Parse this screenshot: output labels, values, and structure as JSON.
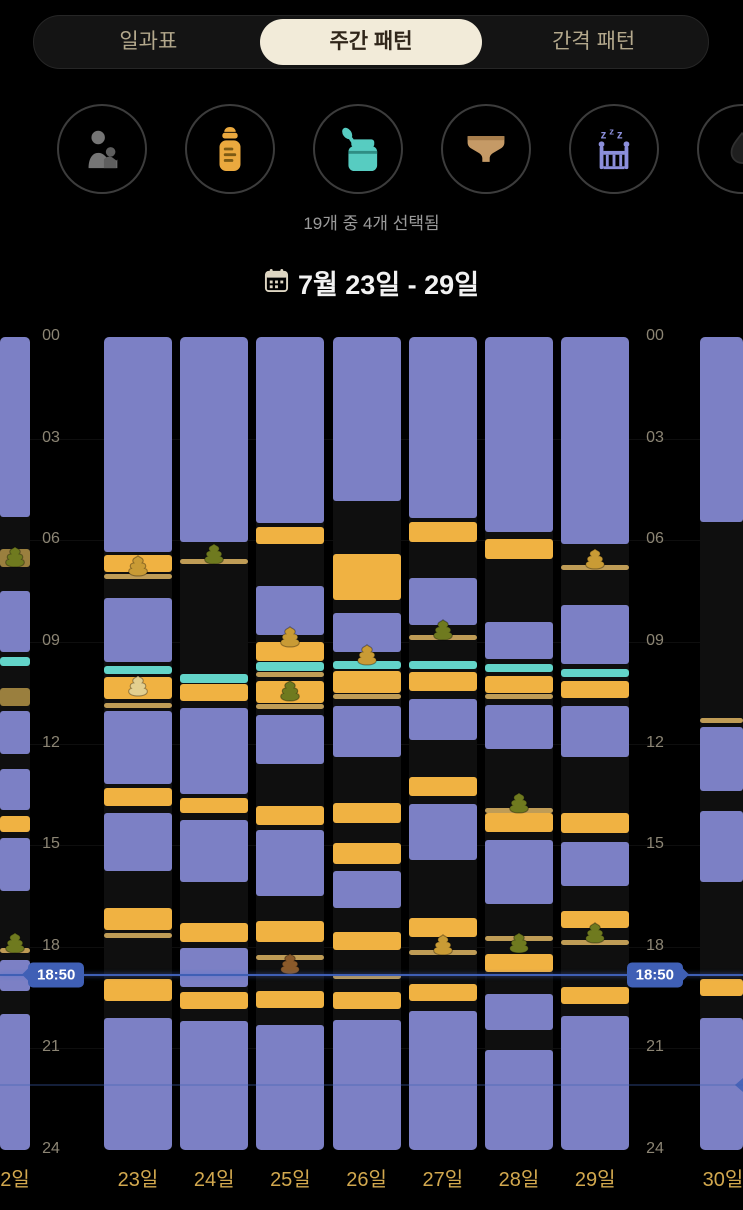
{
  "tabs": {
    "items": [
      {
        "label": "일과표",
        "selected": false
      },
      {
        "label": "주간 패턴",
        "selected": true
      },
      {
        "label": "간격 패턴",
        "selected": false
      }
    ]
  },
  "filters": {
    "summary": "19개 중 4개 선택됨",
    "items": [
      {
        "name": "nursing",
        "selected": false,
        "color": "#757575"
      },
      {
        "name": "bottle",
        "selected": true,
        "color": "#eba93e"
      },
      {
        "name": "baby-food",
        "selected": true,
        "color": "#57ccc1"
      },
      {
        "name": "diaper",
        "selected": true,
        "color": "#c59a66"
      },
      {
        "name": "sleep",
        "selected": true,
        "color": "#8c8fdb"
      },
      {
        "name": "extra",
        "selected": false,
        "color": "#1f1f1f"
      }
    ]
  },
  "date_header": {
    "label": "7월 23일 - 29일"
  },
  "colors": {
    "accent_gold": "#d2a84e",
    "now_line_blue": "#3f5fb5",
    "selected_tab_bg": "#f2ebd9"
  },
  "chart_data": {
    "type": "timeline-week",
    "title": "주간 패턴 (weekly baby activity timeline)",
    "y_ticks": [
      "00",
      "03",
      "06",
      "09",
      "12",
      "15",
      "18",
      "21",
      "24"
    ],
    "hour_range": [
      0,
      24
    ],
    "now_line": {
      "label": "18:50",
      "hour": 18.833,
      "color": "#3f5fb5"
    },
    "secondary_line": {
      "hour": 22.05
    },
    "event_colors": {
      "sleep": "#7c80c5",
      "bottle": "#f0b242",
      "food": "#63d4c9",
      "diaper": "#bf9c56",
      "diaper_block": "#9a7f3e",
      "poop_tan": "#c99b35",
      "poop_olive": "#6f7a1f",
      "poop_brown": "#8a5a2a",
      "poop_cream": "#e3cf8f"
    },
    "left_partial": {
      "label": "2일",
      "events": [
        {
          "t": "sleep",
          "s": 0,
          "e": 5.3
        },
        {
          "t": "diaper_block",
          "s": 6.25,
          "e": 6.8
        },
        {
          "t": "poop",
          "at": 6.5,
          "c": "olive"
        },
        {
          "t": "sleep",
          "s": 7.5,
          "e": 9.3
        },
        {
          "t": "food",
          "s": 9.45,
          "e": 9.7
        },
        {
          "t": "diaper_block",
          "s": 10.35,
          "e": 10.9
        },
        {
          "t": "sleep",
          "s": 11.05,
          "e": 12.3
        },
        {
          "t": "sleep",
          "s": 12.75,
          "e": 13.95
        },
        {
          "t": "bottle",
          "s": 14.15,
          "e": 14.6
        },
        {
          "t": "sleep",
          "s": 14.8,
          "e": 16.35
        },
        {
          "t": "poop",
          "at": 17.9,
          "c": "olive"
        },
        {
          "t": "diaper",
          "at": 18.1
        },
        {
          "t": "sleep",
          "s": 18.4,
          "e": 19.3
        },
        {
          "t": "sleep",
          "s": 20.0,
          "e": 24
        }
      ]
    },
    "right_partial": {
      "label": "30일",
      "events": [
        {
          "t": "sleep",
          "s": 0,
          "e": 5.45
        },
        {
          "t": "diaper",
          "at": 11.3
        },
        {
          "t": "sleep",
          "s": 11.5,
          "e": 13.4
        },
        {
          "t": "sleep",
          "s": 14.0,
          "e": 16.1
        },
        {
          "t": "bottle",
          "s": 18.95,
          "e": 19.45
        },
        {
          "t": "sleep",
          "s": 20.1,
          "e": 24
        }
      ]
    },
    "days": [
      {
        "label": "23일",
        "events": [
          {
            "t": "sleep",
            "s": 0,
            "e": 6.35
          },
          {
            "t": "bottle",
            "s": 6.45,
            "e": 6.95
          },
          {
            "t": "poop",
            "at": 6.75,
            "c": "tan"
          },
          {
            "t": "diaper",
            "at": 7.05
          },
          {
            "t": "sleep",
            "s": 7.7,
            "e": 9.6
          },
          {
            "t": "food",
            "s": 9.7,
            "e": 9.95
          },
          {
            "t": "bottle",
            "s": 10.05,
            "e": 10.7
          },
          {
            "t": "poop",
            "at": 10.3,
            "c": "cream"
          },
          {
            "t": "diaper",
            "at": 10.85
          },
          {
            "t": "sleep",
            "s": 11.05,
            "e": 13.2
          },
          {
            "t": "bottle",
            "s": 13.3,
            "e": 13.85
          },
          {
            "t": "sleep",
            "s": 14.05,
            "e": 15.75
          },
          {
            "t": "bottle",
            "s": 16.85,
            "e": 17.5
          },
          {
            "t": "diaper",
            "at": 17.65
          },
          {
            "t": "bottle",
            "s": 18.95,
            "e": 19.6
          },
          {
            "t": "sleep",
            "s": 20.1,
            "e": 24
          }
        ]
      },
      {
        "label": "24일",
        "events": [
          {
            "t": "sleep",
            "s": 0,
            "e": 6.05
          },
          {
            "t": "poop",
            "at": 6.4,
            "c": "olive"
          },
          {
            "t": "diaper",
            "at": 6.6
          },
          {
            "t": "food",
            "s": 9.95,
            "e": 10.2
          },
          {
            "t": "bottle",
            "s": 10.25,
            "e": 10.75
          },
          {
            "t": "sleep",
            "s": 10.95,
            "e": 13.5
          },
          {
            "t": "bottle",
            "s": 13.6,
            "e": 14.05
          },
          {
            "t": "sleep",
            "s": 14.25,
            "e": 16.1
          },
          {
            "t": "bottle",
            "s": 17.3,
            "e": 17.85
          },
          {
            "t": "sleep",
            "s": 18.05,
            "e": 19.2
          },
          {
            "t": "bottle",
            "s": 19.35,
            "e": 19.85
          },
          {
            "t": "sleep",
            "s": 20.2,
            "e": 24
          }
        ]
      },
      {
        "label": "25일",
        "events": [
          {
            "t": "sleep",
            "s": 0,
            "e": 5.5
          },
          {
            "t": "bottle",
            "s": 5.6,
            "e": 6.1
          },
          {
            "t": "sleep",
            "s": 7.35,
            "e": 8.8
          },
          {
            "t": "poop",
            "at": 8.85,
            "c": "tan"
          },
          {
            "t": "bottle",
            "s": 9.0,
            "e": 9.55
          },
          {
            "t": "food",
            "s": 9.6,
            "e": 9.85
          },
          {
            "t": "diaper",
            "at": 9.95
          },
          {
            "t": "bottle",
            "s": 10.15,
            "e": 10.8
          },
          {
            "t": "poop",
            "at": 10.45,
            "c": "olive"
          },
          {
            "t": "diaper",
            "at": 10.9
          },
          {
            "t": "sleep",
            "s": 11.15,
            "e": 12.6
          },
          {
            "t": "bottle",
            "s": 13.85,
            "e": 14.4
          },
          {
            "t": "sleep",
            "s": 14.55,
            "e": 16.5
          },
          {
            "t": "bottle",
            "s": 17.25,
            "e": 17.85
          },
          {
            "t": "diaper",
            "at": 18.3
          },
          {
            "t": "poop",
            "at": 18.5,
            "c": "brown"
          },
          {
            "t": "bottle",
            "s": 19.3,
            "e": 19.8
          },
          {
            "t": "sleep",
            "s": 20.3,
            "e": 24
          }
        ]
      },
      {
        "label": "26일",
        "events": [
          {
            "t": "sleep",
            "s": 0,
            "e": 4.85
          },
          {
            "t": "bottle",
            "s": 6.4,
            "e": 7.75
          },
          {
            "t": "sleep",
            "s": 8.15,
            "e": 9.3
          },
          {
            "t": "poop",
            "at": 9.4,
            "c": "tan"
          },
          {
            "t": "food",
            "s": 9.55,
            "e": 9.8
          },
          {
            "t": "bottle",
            "s": 9.85,
            "e": 10.5
          },
          {
            "t": "diaper",
            "at": 10.6
          },
          {
            "t": "sleep",
            "s": 10.9,
            "e": 12.4
          },
          {
            "t": "bottle",
            "s": 13.75,
            "e": 14.35
          },
          {
            "t": "bottle",
            "s": 14.95,
            "e": 15.55
          },
          {
            "t": "sleep",
            "s": 15.75,
            "e": 16.85
          },
          {
            "t": "bottle",
            "s": 17.55,
            "e": 18.1
          },
          {
            "t": "diaper",
            "at": 18.85
          },
          {
            "t": "bottle",
            "s": 19.35,
            "e": 19.85
          },
          {
            "t": "sleep",
            "s": 20.15,
            "e": 24
          }
        ]
      },
      {
        "label": "27일",
        "events": [
          {
            "t": "sleep",
            "s": 0,
            "e": 5.35
          },
          {
            "t": "bottle",
            "s": 5.45,
            "e": 6.05
          },
          {
            "t": "sleep",
            "s": 7.1,
            "e": 8.5
          },
          {
            "t": "poop",
            "at": 8.65,
            "c": "olive"
          },
          {
            "t": "diaper",
            "at": 8.85
          },
          {
            "t": "food",
            "s": 9.55,
            "e": 9.8
          },
          {
            "t": "bottle",
            "s": 9.9,
            "e": 10.45
          },
          {
            "t": "sleep",
            "s": 10.7,
            "e": 11.9
          },
          {
            "t": "bottle",
            "s": 13.0,
            "e": 13.55
          },
          {
            "t": "sleep",
            "s": 13.8,
            "e": 15.45
          },
          {
            "t": "bottle",
            "s": 17.15,
            "e": 17.7
          },
          {
            "t": "poop",
            "at": 17.95,
            "c": "tan"
          },
          {
            "t": "diaper",
            "at": 18.15
          },
          {
            "t": "bottle",
            "s": 19.1,
            "e": 19.6
          },
          {
            "t": "sleep",
            "s": 19.9,
            "e": 24
          }
        ]
      },
      {
        "label": "28일",
        "events": [
          {
            "t": "sleep",
            "s": 0,
            "e": 5.75
          },
          {
            "t": "bottle",
            "s": 5.95,
            "e": 6.55
          },
          {
            "t": "sleep",
            "s": 8.4,
            "e": 9.5
          },
          {
            "t": "food",
            "s": 9.65,
            "e": 9.9
          },
          {
            "t": "bottle",
            "s": 10.0,
            "e": 10.5
          },
          {
            "t": "diaper",
            "at": 10.6
          },
          {
            "t": "sleep",
            "s": 10.85,
            "e": 12.15
          },
          {
            "t": "poop",
            "at": 13.75,
            "c": "olive"
          },
          {
            "t": "diaper",
            "at": 13.95
          },
          {
            "t": "bottle",
            "s": 14.05,
            "e": 14.6
          },
          {
            "t": "sleep",
            "s": 14.85,
            "e": 16.75
          },
          {
            "t": "diaper",
            "at": 17.75
          },
          {
            "t": "poop",
            "at": 17.9,
            "c": "olive"
          },
          {
            "t": "bottle",
            "s": 18.2,
            "e": 18.75
          },
          {
            "t": "sleep",
            "s": 19.4,
            "e": 20.45
          },
          {
            "t": "sleep",
            "s": 21.05,
            "e": 24
          }
        ]
      },
      {
        "label": "29일",
        "events": [
          {
            "t": "sleep",
            "s": 0,
            "e": 6.1
          },
          {
            "t": "poop",
            "at": 6.55,
            "c": "tan"
          },
          {
            "t": "diaper",
            "at": 6.8
          },
          {
            "t": "sleep",
            "s": 7.9,
            "e": 9.65
          },
          {
            "t": "food",
            "s": 9.8,
            "e": 10.05
          },
          {
            "t": "bottle",
            "s": 10.15,
            "e": 10.65
          },
          {
            "t": "sleep",
            "s": 10.9,
            "e": 12.4
          },
          {
            "t": "bottle",
            "s": 14.05,
            "e": 14.65
          },
          {
            "t": "sleep",
            "s": 14.9,
            "e": 16.2
          },
          {
            "t": "bottle",
            "s": 16.95,
            "e": 17.45
          },
          {
            "t": "poop",
            "at": 17.6,
            "c": "olive"
          },
          {
            "t": "diaper",
            "at": 17.85
          },
          {
            "t": "bottle",
            "s": 19.2,
            "e": 19.7
          },
          {
            "t": "sleep",
            "s": 20.05,
            "e": 24
          }
        ]
      }
    ]
  }
}
